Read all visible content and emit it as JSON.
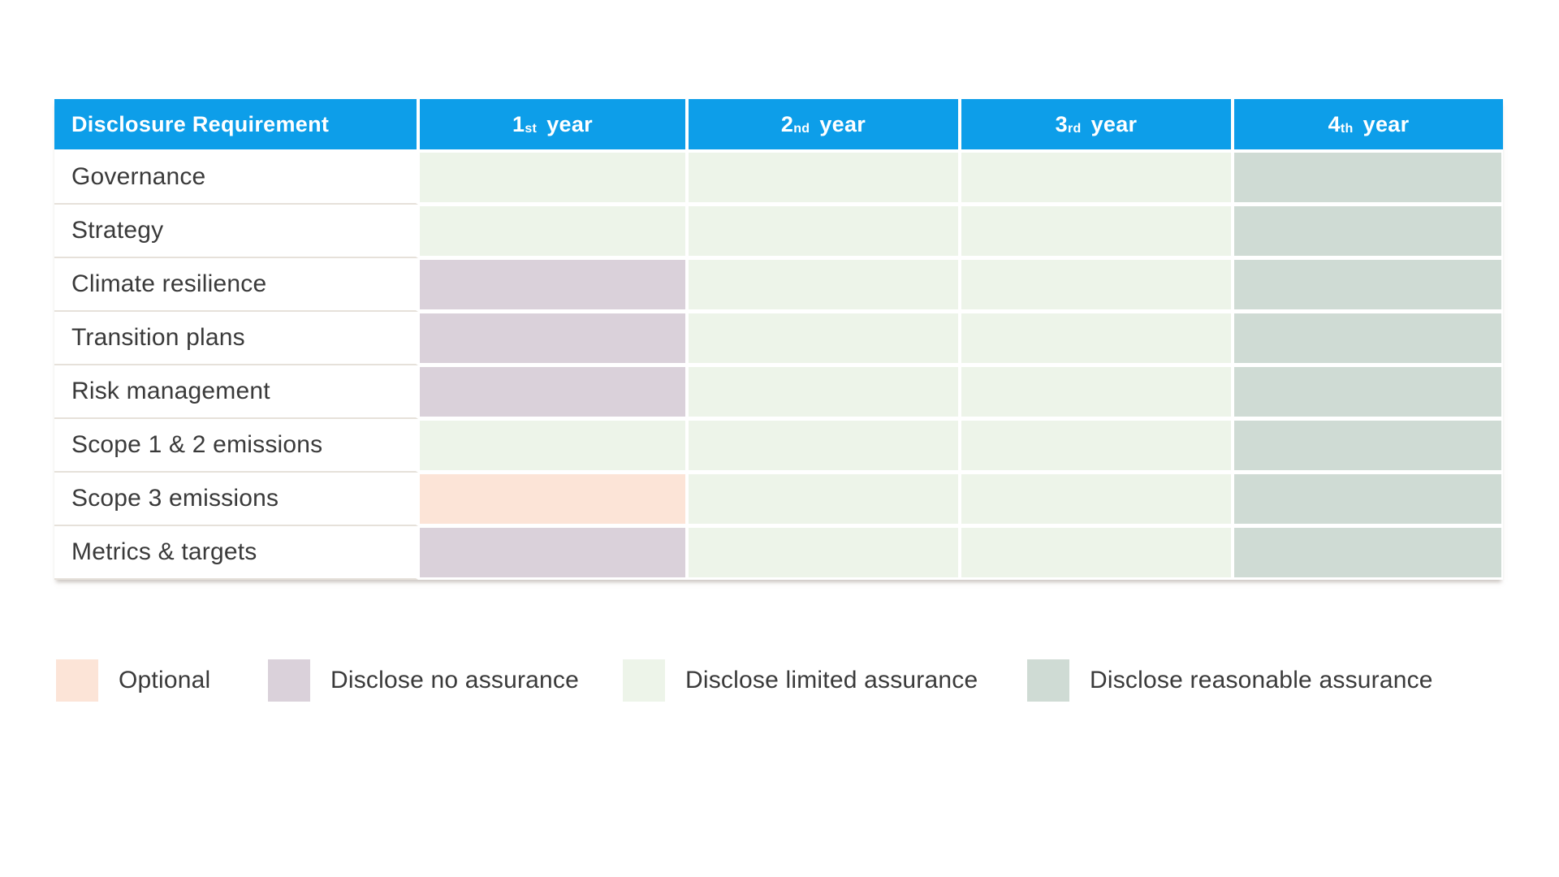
{
  "table": {
    "header": {
      "bg_color": "#0d9ee9",
      "text_color": "#ffffff",
      "columns": [
        {
          "label": "Disclosure Requirement"
        },
        {
          "label": "1st year",
          "prefix": "1",
          "sup": "st",
          "suffix": "year"
        },
        {
          "label": "2nd year",
          "prefix": "2",
          "sup": "nd",
          "suffix": "year"
        },
        {
          "label": "3rd year",
          "prefix": "3",
          "sup": "rd",
          "suffix": "year"
        },
        {
          "label": "4th year",
          "prefix": "4",
          "sup": "th",
          "suffix": "year"
        }
      ]
    },
    "rows": [
      {
        "label": "Governance",
        "cells": [
          "limited",
          "limited",
          "limited",
          "reasonable"
        ]
      },
      {
        "label": "Strategy",
        "cells": [
          "limited",
          "limited",
          "limited",
          "reasonable"
        ]
      },
      {
        "label": "Climate resilience",
        "cells": [
          "none",
          "limited",
          "limited",
          "reasonable"
        ]
      },
      {
        "label": "Transition plans",
        "cells": [
          "none",
          "limited",
          "limited",
          "reasonable"
        ]
      },
      {
        "label": "Risk management",
        "cells": [
          "none",
          "limited",
          "limited",
          "reasonable"
        ]
      },
      {
        "label": "Scope 1 & 2 emissions",
        "cells": [
          "limited",
          "limited",
          "limited",
          "reasonable"
        ]
      },
      {
        "label": "Scope 3 emissions",
        "cells": [
          "optional",
          "limited",
          "limited",
          "reasonable"
        ]
      },
      {
        "label": "Metrics & targets",
        "cells": [
          "none",
          "limited",
          "limited",
          "reasonable"
        ]
      }
    ],
    "statuses": {
      "optional": {
        "label": "Optional",
        "color": "#fce4d7"
      },
      "none": {
        "label": "Disclose no assurance",
        "color": "#dad1da"
      },
      "limited": {
        "label": "Disclose limited assurance",
        "color": "#edf4e9"
      },
      "reasonable": {
        "label": "Disclose reasonable assurance",
        "color": "#cfdbd4"
      }
    },
    "legend_order": [
      "optional",
      "none",
      "limited",
      "reasonable"
    ]
  },
  "chart_data": {
    "type": "heatmap",
    "title": "",
    "x_categories": [
      "1st year",
      "2nd year",
      "3rd year",
      "4th year"
    ],
    "y_categories": [
      "Governance",
      "Strategy",
      "Climate resilience",
      "Transition plans",
      "Risk management",
      "Scope 1 & 2 emissions",
      "Scope 3 emissions",
      "Metrics & targets"
    ],
    "corner_label": "Disclosure Requirement",
    "values": [
      [
        "Disclose limited assurance",
        "Disclose limited assurance",
        "Disclose limited assurance",
        "Disclose reasonable assurance"
      ],
      [
        "Disclose limited assurance",
        "Disclose limited assurance",
        "Disclose limited assurance",
        "Disclose reasonable assurance"
      ],
      [
        "Disclose no assurance",
        "Disclose limited assurance",
        "Disclose limited assurance",
        "Disclose reasonable assurance"
      ],
      [
        "Disclose no assurance",
        "Disclose limited assurance",
        "Disclose limited assurance",
        "Disclose reasonable assurance"
      ],
      [
        "Disclose no assurance",
        "Disclose limited assurance",
        "Disclose limited assurance",
        "Disclose reasonable assurance"
      ],
      [
        "Disclose limited assurance",
        "Disclose limited assurance",
        "Disclose limited assurance",
        "Disclose reasonable assurance"
      ],
      [
        "Optional",
        "Disclose limited assurance",
        "Disclose limited assurance",
        "Disclose reasonable assurance"
      ],
      [
        "Disclose no assurance",
        "Disclose limited assurance",
        "Disclose limited assurance",
        "Disclose reasonable assurance"
      ]
    ],
    "legend": [
      {
        "label": "Optional",
        "color": "#fce4d7"
      },
      {
        "label": "Disclose no assurance",
        "color": "#dad1da"
      },
      {
        "label": "Disclose limited assurance",
        "color": "#edf4e9"
      },
      {
        "label": "Disclose reasonable assurance",
        "color": "#cfdbd4"
      }
    ],
    "legend_position": "bottom"
  }
}
